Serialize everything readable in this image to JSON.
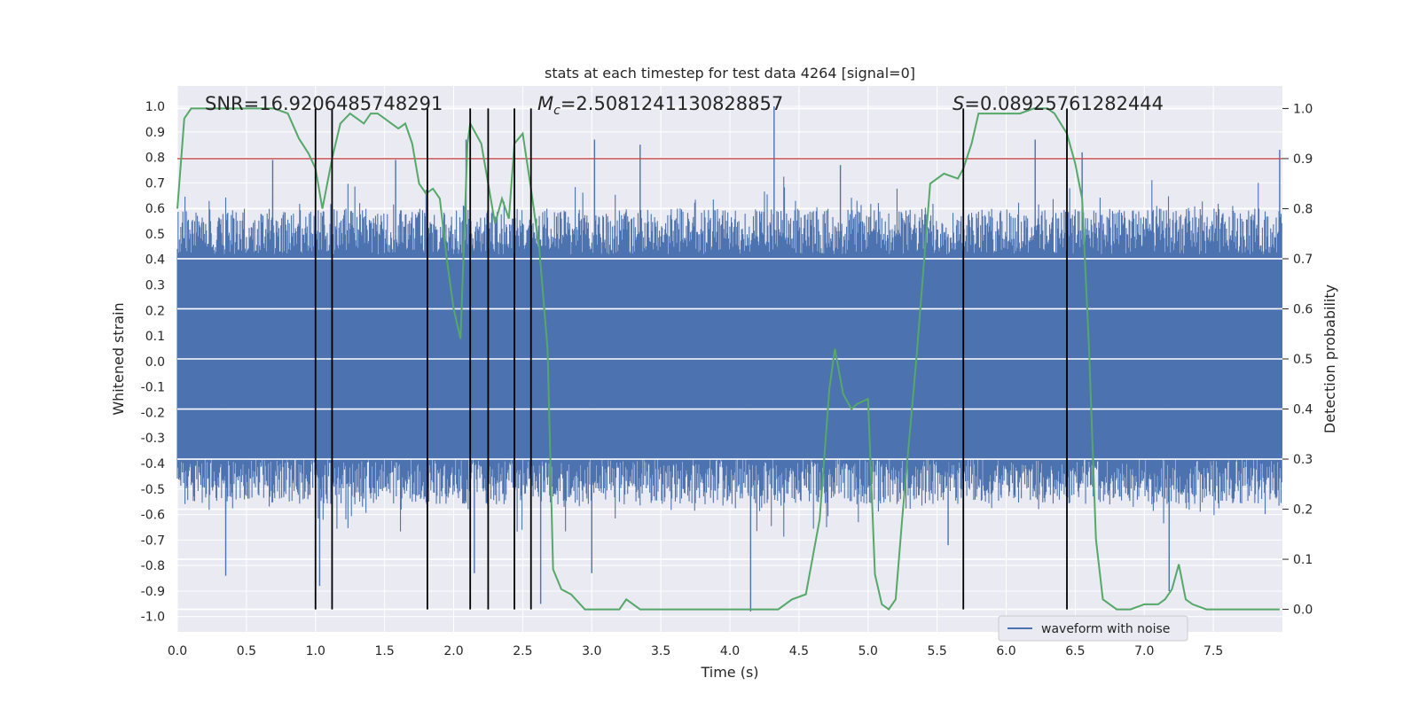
{
  "chart_data": {
    "type": "line",
    "title": "stats at each timestep for test data 4264 [signal=0]",
    "xlabel": "Time (s)",
    "ylabel_left": "Whitened strain",
    "ylabel_right": "Detection probability",
    "xlim": [
      0.0,
      8.0
    ],
    "ylim_left": [
      -1.06,
      1.08
    ],
    "ylim_right": [
      -0.045,
      1.045
    ],
    "x_ticks": [
      "0.0",
      "0.5",
      "1.0",
      "1.5",
      "2.0",
      "2.5",
      "3.0",
      "3.5",
      "4.0",
      "4.5",
      "5.0",
      "5.5",
      "6.0",
      "6.5",
      "7.0",
      "7.5"
    ],
    "y_left_ticks": [
      "1.0",
      "0.9",
      "0.8",
      "0.7",
      "0.6",
      "0.5",
      "0.4",
      "0.3",
      "0.2",
      "0.1",
      "0.0",
      "-0.1",
      "-0.2",
      "-0.3",
      "-0.4",
      "-0.5",
      "-0.6",
      "-0.7",
      "-0.8",
      "-0.9",
      "-1.0"
    ],
    "y_right_ticks": [
      "1.0",
      "0.9",
      "0.8",
      "0.7",
      "0.6",
      "0.5",
      "0.4",
      "0.3",
      "0.2",
      "0.1",
      "0.0"
    ],
    "grid": true,
    "annotations": {
      "snr": "SNR=16.9206485748291",
      "mc_symbol": "M",
      "mc_sub": "c",
      "mc_value": "=2.5081241130828857",
      "s_symbol": "S",
      "s_value": "=0.08925761282444"
    },
    "threshold": {
      "value": 0.9,
      "axis": "right",
      "color": "#c44e52"
    },
    "vertical_markers": [
      1.0,
      1.12,
      1.81,
      2.12,
      2.25,
      2.44,
      2.56,
      5.69,
      6.44
    ],
    "legend": {
      "label": "waveform with noise",
      "position": "lower-right"
    },
    "series": [
      {
        "name": "waveform with noise",
        "axis": "left",
        "color": "#4c72b0",
        "kind": "noise",
        "notable_peaks": [
          {
            "x": 0.35,
            "y": -0.84
          },
          {
            "x": 0.69,
            "y": 0.79
          },
          {
            "x": 1.03,
            "y": -0.88
          },
          {
            "x": 1.58,
            "y": 0.79
          },
          {
            "x": 2.09,
            "y": 0.87
          },
          {
            "x": 2.15,
            "y": -0.83
          },
          {
            "x": 2.63,
            "y": -0.95
          },
          {
            "x": 3.0,
            "y": -0.83
          },
          {
            "x": 3.02,
            "y": 0.87
          },
          {
            "x": 3.35,
            "y": 0.85
          },
          {
            "x": 4.15,
            "y": -0.98
          },
          {
            "x": 4.32,
            "y": 1.0
          },
          {
            "x": 4.8,
            "y": 0.77
          },
          {
            "x": 5.58,
            "y": -0.72
          },
          {
            "x": 6.21,
            "y": 0.87
          },
          {
            "x": 6.55,
            "y": 0.82
          },
          {
            "x": 7.18,
            "y": -0.9
          },
          {
            "x": 7.98,
            "y": 0.83
          }
        ]
      },
      {
        "name": "detection probability",
        "axis": "right",
        "color": "#55a868",
        "x": [
          0.0,
          0.05,
          0.1,
          0.2,
          0.3,
          0.4,
          0.5,
          0.6,
          0.7,
          0.8,
          0.88,
          0.95,
          1.0,
          1.05,
          1.12,
          1.18,
          1.25,
          1.3,
          1.35,
          1.4,
          1.45,
          1.5,
          1.55,
          1.6,
          1.65,
          1.7,
          1.75,
          1.8,
          1.85,
          1.9,
          1.95,
          2.0,
          2.05,
          2.1,
          2.12,
          2.2,
          2.25,
          2.3,
          2.35,
          2.4,
          2.44,
          2.5,
          2.56,
          2.62,
          2.68,
          2.72,
          2.78,
          2.85,
          2.95,
          3.1,
          3.2,
          3.25,
          3.3,
          3.35,
          3.45,
          3.6,
          3.8,
          4.0,
          4.2,
          4.35,
          4.45,
          4.55,
          4.65,
          4.72,
          4.76,
          4.82,
          4.88,
          4.92,
          5.0,
          5.05,
          5.1,
          5.15,
          5.2,
          5.25,
          5.35,
          5.45,
          5.55,
          5.65,
          5.69,
          5.75,
          5.8,
          5.85,
          5.9,
          6.0,
          6.1,
          6.2,
          6.3,
          6.35,
          6.44,
          6.5,
          6.55,
          6.6,
          6.65,
          6.7,
          6.8,
          6.9,
          7.0,
          7.1,
          7.15,
          7.2,
          7.25,
          7.3,
          7.35,
          7.45,
          7.6,
          7.8,
          7.98
        ],
        "y": [
          0.8,
          0.98,
          1.0,
          1.0,
          1.0,
          1.0,
          1.0,
          1.0,
          1.0,
          0.99,
          0.94,
          0.91,
          0.88,
          0.8,
          0.9,
          0.97,
          0.99,
          0.98,
          0.97,
          0.99,
          0.99,
          0.98,
          0.97,
          0.96,
          0.97,
          0.93,
          0.85,
          0.83,
          0.84,
          0.82,
          0.7,
          0.6,
          0.54,
          0.93,
          0.97,
          0.93,
          0.85,
          0.77,
          0.82,
          0.78,
          0.93,
          0.95,
          0.84,
          0.72,
          0.52,
          0.08,
          0.04,
          0.03,
          0.0,
          0.0,
          0.0,
          0.02,
          0.01,
          0.0,
          0.0,
          0.0,
          0.0,
          0.0,
          0.0,
          0.0,
          0.02,
          0.03,
          0.18,
          0.44,
          0.52,
          0.43,
          0.4,
          0.41,
          0.42,
          0.07,
          0.01,
          0.0,
          0.02,
          0.19,
          0.5,
          0.85,
          0.87,
          0.86,
          0.88,
          0.93,
          0.99,
          0.99,
          0.99,
          0.99,
          0.99,
          1.0,
          1.0,
          0.99,
          0.95,
          0.89,
          0.82,
          0.52,
          0.14,
          0.02,
          0.0,
          0.0,
          0.01,
          0.01,
          0.02,
          0.04,
          0.09,
          0.02,
          0.01,
          0.0,
          0.0,
          0.0,
          0.0
        ]
      }
    ]
  }
}
